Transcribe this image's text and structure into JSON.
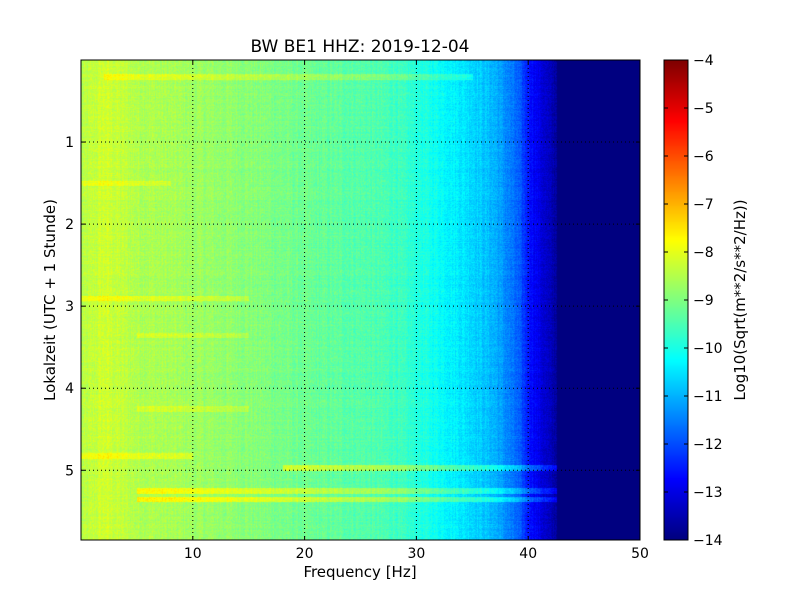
{
  "chart_data": {
    "type": "heatmap",
    "title": "BW BE1 HHZ: 2019-12-04",
    "xlabel": "Frequency [Hz]",
    "ylabel": "Lokalzeit (UTC + 1 Stunde)",
    "xlim": [
      0,
      50
    ],
    "ylim": [
      5.85,
      0
    ],
    "x_ticks": [
      10,
      20,
      30,
      40,
      50
    ],
    "y_ticks": [
      1,
      2,
      3,
      4,
      5
    ],
    "grid": true,
    "colormap": "jet",
    "colorbar": {
      "label": "Log10(Sqrt(m**2/s**2/Hz))",
      "min": -14,
      "max": -4,
      "ticks": [
        -14,
        -13,
        -12,
        -11,
        -10,
        -9,
        -8,
        -7,
        -6,
        -5,
        -4
      ]
    },
    "frequency_profile": {
      "frequency_hz": [
        0,
        2,
        5,
        10,
        15,
        20,
        25,
        28,
        30,
        33,
        35,
        37,
        39,
        40,
        41,
        42,
        43,
        44,
        45,
        50
      ],
      "log_amplitude": [
        -8.5,
        -8.2,
        -8.5,
        -8.7,
        -8.9,
        -9.2,
        -9.4,
        -9.6,
        -9.9,
        -10.3,
        -10.6,
        -11.0,
        -11.8,
        -12.5,
        -13.0,
        -13.5,
        -13.8,
        -14.0,
        -14.0,
        -14.0
      ]
    },
    "bands": [
      {
        "time_h": 0.2,
        "fmin": 2,
        "fmax": 35,
        "delta": 0.5
      },
      {
        "time_h": 1.5,
        "fmin": 0,
        "fmax": 8,
        "delta": 0.4
      },
      {
        "time_h": 2.9,
        "fmin": 0,
        "fmax": 15,
        "delta": 0.5
      },
      {
        "time_h": 3.35,
        "fmin": 5,
        "fmax": 15,
        "delta": 0.4
      },
      {
        "time_h": 4.25,
        "fmin": 5,
        "fmax": 15,
        "delta": 0.4
      },
      {
        "time_h": 4.82,
        "fmin": 0,
        "fmax": 10,
        "delta": 0.5
      },
      {
        "time_h": 4.97,
        "fmin": 18,
        "fmax": 44,
        "delta": 0.9
      },
      {
        "time_h": 5.25,
        "fmin": 5,
        "fmax": 44,
        "delta": 0.8
      },
      {
        "time_h": 5.35,
        "fmin": 5,
        "fmax": 45,
        "delta": 0.9
      }
    ]
  }
}
